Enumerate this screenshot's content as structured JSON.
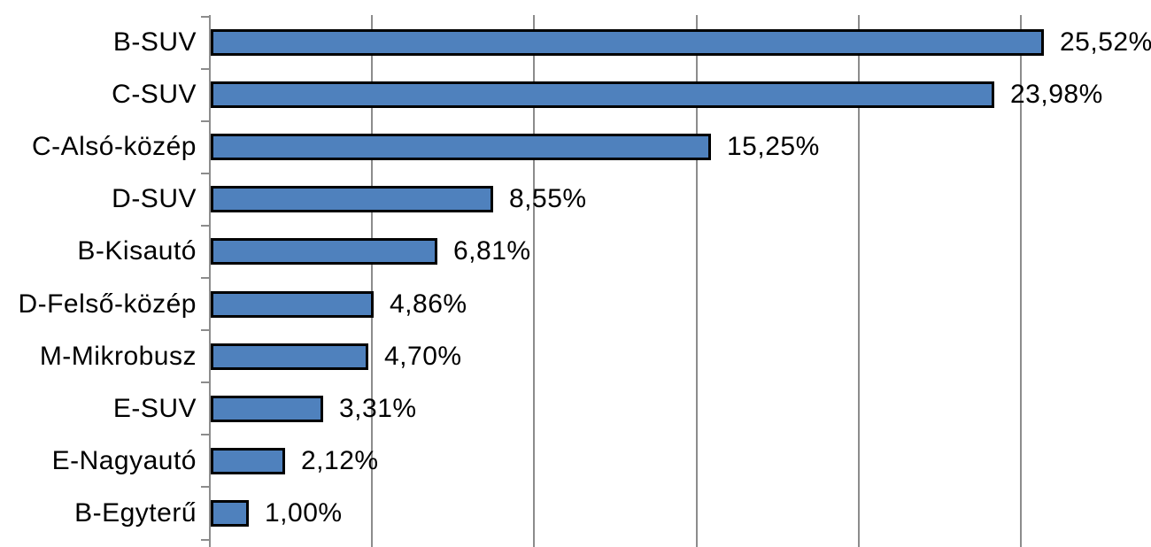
{
  "chart_data": {
    "type": "bar",
    "orientation": "horizontal",
    "title": "",
    "xlabel": "",
    "ylabel": "",
    "categories": [
      "B-SUV",
      "C-SUV",
      "C-Alsó-közép",
      "D-SUV",
      "B-Kisautó",
      "D-Felső-közép",
      "M-Mikrobusz",
      "E-SUV",
      "E-Nagyautó",
      "B-Egyterű"
    ],
    "values": [
      25.52,
      23.98,
      15.25,
      8.55,
      6.81,
      4.86,
      4.7,
      3.31,
      2.12,
      1.0
    ],
    "value_labels": [
      "25,52%",
      "23,98%",
      "15,25%",
      "8,55%",
      "6,81%",
      "4,86%",
      "4,70%",
      "3,31%",
      "2,12%",
      "1,00%"
    ],
    "xlim": [
      0,
      30
    ],
    "x_gridline_step_percent": 5,
    "x_tick_labels_visible": false,
    "grid": "vertical",
    "legend": "none",
    "sorted": "descending",
    "colors": {
      "bar_fill": "#4F81BD",
      "bar_border": "#000000",
      "gridline": "#8C8C8C",
      "axis": "#8C8C8C",
      "text": "#000000",
      "background": "#FFFFFF"
    }
  }
}
